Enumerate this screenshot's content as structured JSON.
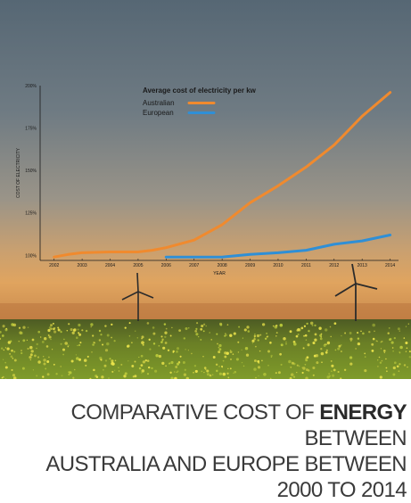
{
  "chart_data": {
    "type": "line",
    "title": "Average cost of electricity per kw",
    "xlabel": "YEAR",
    "ylabel": "COST OF ELECTRICITY",
    "x_ticks": [
      "2002",
      "2003",
      "2004",
      "2005",
      "2006",
      "2007",
      "2008",
      "2009",
      "2010",
      "2011",
      "2012",
      "2013",
      "2014"
    ],
    "y_ticks": [
      "100%",
      "125%",
      "150%",
      "175%",
      "200%"
    ],
    "xlim": [
      2001.5,
      2014.3
    ],
    "ylim": [
      97,
      200
    ],
    "legend_position": "top-center",
    "series": [
      {
        "name": "Australian",
        "color": "#f08a2e",
        "points": [
          [
            2002,
            99
          ],
          [
            2002.5,
            100.5
          ],
          [
            2003,
            101.5
          ],
          [
            2004,
            102
          ],
          [
            2005,
            102
          ],
          [
            2005.5,
            103
          ],
          [
            2006,
            104.5
          ],
          [
            2007,
            109
          ],
          [
            2008,
            118
          ],
          [
            2009,
            131
          ],
          [
            2010,
            141
          ],
          [
            2011,
            152
          ],
          [
            2012,
            165
          ],
          [
            2013,
            182
          ],
          [
            2014,
            196
          ]
        ]
      },
      {
        "name": "European",
        "color": "#2f8fd6",
        "points": [
          [
            2006,
            99
          ],
          [
            2007,
            99
          ],
          [
            2008,
            99
          ],
          [
            2009,
            100.5
          ],
          [
            2010,
            101.5
          ],
          [
            2011,
            103
          ],
          [
            2012,
            106.5
          ],
          [
            2013,
            108.5
          ],
          [
            2014,
            112
          ]
        ]
      }
    ],
    "grid": false
  },
  "caption": {
    "line1_prefix": "Comparative cost of ",
    "line1_bold": "Energy",
    "line1_suffix": " between",
    "line2": "Australia and Europe between",
    "line3": "2000 to 2014"
  },
  "colors": {
    "sky_top": "#5e6d79",
    "sky_mid": "#8c8f90",
    "horizon": "#d39a5d",
    "field": "#6f8a22",
    "caption_text": "#3a3a3a"
  }
}
